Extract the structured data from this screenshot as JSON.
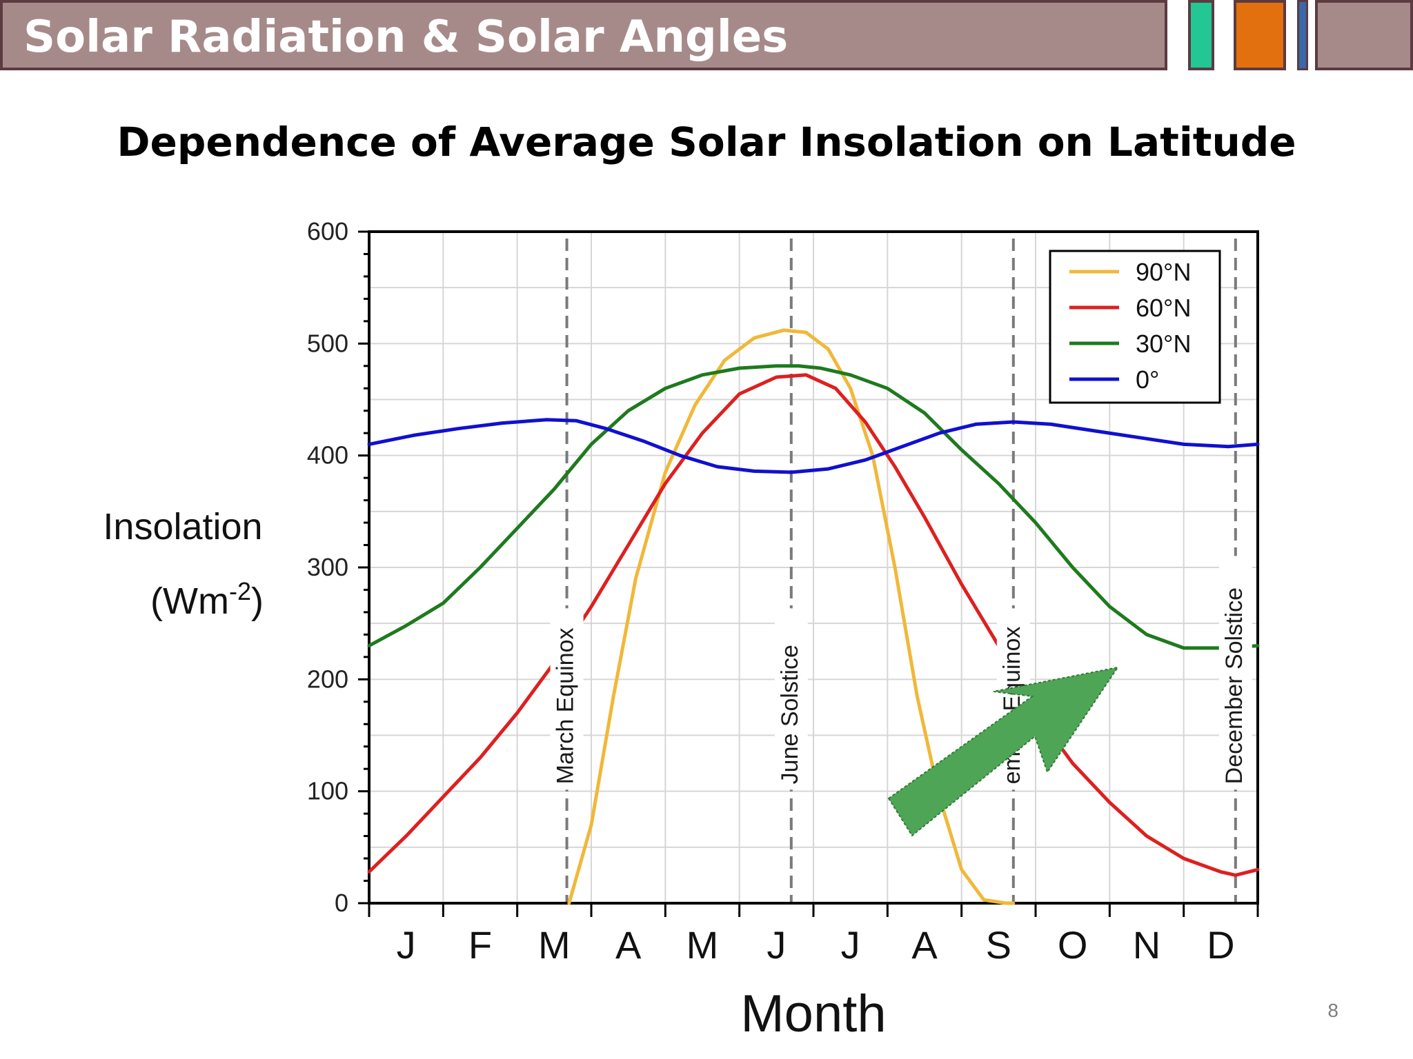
{
  "header": {
    "title": "Solar Radiation & Solar Angles",
    "accent_colors": [
      "#22c794",
      "#e3700f",
      "#3b68a8"
    ],
    "bar_color": "#a68a8a"
  },
  "slide": {
    "heading": "Dependence of Average Solar Insolation on Latitude",
    "page_number": "8"
  },
  "chart_data": {
    "type": "line",
    "ylabel_line1": "Insolation",
    "ylabel_base": "(Wm",
    "ylabel_sup": "-2",
    "ylabel_close": ")",
    "xlabel": "Month",
    "ylim": [
      0,
      600
    ],
    "yticks": [
      0,
      100,
      200,
      300,
      400,
      500,
      600
    ],
    "xlim": [
      0,
      12
    ],
    "month_labels": [
      "J",
      "F",
      "M",
      "A",
      "M",
      "J",
      "J",
      "A",
      "S",
      "O",
      "N",
      "D"
    ],
    "grid": true,
    "legend_position": "top-right",
    "markers": [
      {
        "label": "March Equinox",
        "x": 2.67
      },
      {
        "label": "June Solstice",
        "x": 5.7
      },
      {
        "label": "September Equinox",
        "visible_label": "ember Equinox",
        "x": 8.7
      },
      {
        "label": "December Solstice",
        "x": 11.7
      }
    ],
    "series": [
      {
        "name": "90°N",
        "color": "#f0b83a",
        "x": [
          2.7,
          3.0,
          3.3,
          3.6,
          4.0,
          4.4,
          4.8,
          5.2,
          5.6,
          5.9,
          6.2,
          6.5,
          6.8,
          7.1,
          7.4,
          7.7,
          8.0,
          8.3,
          8.6,
          8.7
        ],
        "y": [
          0,
          70,
          185,
          290,
          385,
          445,
          485,
          505,
          512,
          510,
          495,
          460,
          400,
          300,
          185,
          95,
          30,
          3,
          0,
          0
        ]
      },
      {
        "name": "60°N",
        "color": "#dd2020",
        "x": [
          0,
          0.5,
          1.0,
          1.5,
          2.0,
          2.5,
          3.0,
          3.5,
          4.0,
          4.5,
          5.0,
          5.5,
          5.9,
          6.3,
          6.7,
          7.1,
          7.5,
          8.0,
          8.5,
          9.0,
          9.5,
          10.0,
          10.5,
          11.0,
          11.5,
          11.7,
          12.0
        ],
        "y": [
          28,
          60,
          95,
          130,
          170,
          215,
          265,
          320,
          375,
          420,
          455,
          470,
          472,
          460,
          430,
          390,
          345,
          285,
          230,
          170,
          125,
          90,
          60,
          40,
          28,
          25,
          30
        ]
      },
      {
        "name": "30°N",
        "color": "#1e7a1e",
        "x": [
          0,
          0.5,
          1.0,
          1.5,
          2.0,
          2.5,
          3.0,
          3.5,
          4.0,
          4.5,
          5.0,
          5.5,
          5.8,
          6.1,
          6.5,
          7.0,
          7.5,
          8.0,
          8.5,
          9.0,
          9.5,
          10.0,
          10.5,
          11.0,
          11.5,
          12.0
        ],
        "y": [
          230,
          248,
          268,
          300,
          335,
          370,
          410,
          440,
          460,
          472,
          478,
          480,
          480,
          478,
          472,
          460,
          438,
          405,
          375,
          340,
          300,
          265,
          240,
          228,
          228,
          230
        ]
      },
      {
        "name": "0°",
        "color": "#1010d0",
        "x": [
          0,
          0.6,
          1.2,
          1.8,
          2.4,
          2.8,
          3.2,
          3.7,
          4.2,
          4.7,
          5.2,
          5.7,
          6.2,
          6.7,
          7.2,
          7.7,
          8.2,
          8.7,
          9.2,
          9.8,
          10.4,
          11.0,
          11.6,
          12.0
        ],
        "y": [
          410,
          418,
          424,
          429,
          432,
          431,
          424,
          413,
          400,
          390,
          386,
          385,
          388,
          396,
          408,
          420,
          428,
          430,
          428,
          422,
          416,
          410,
          408,
          410
        ]
      }
    ]
  }
}
